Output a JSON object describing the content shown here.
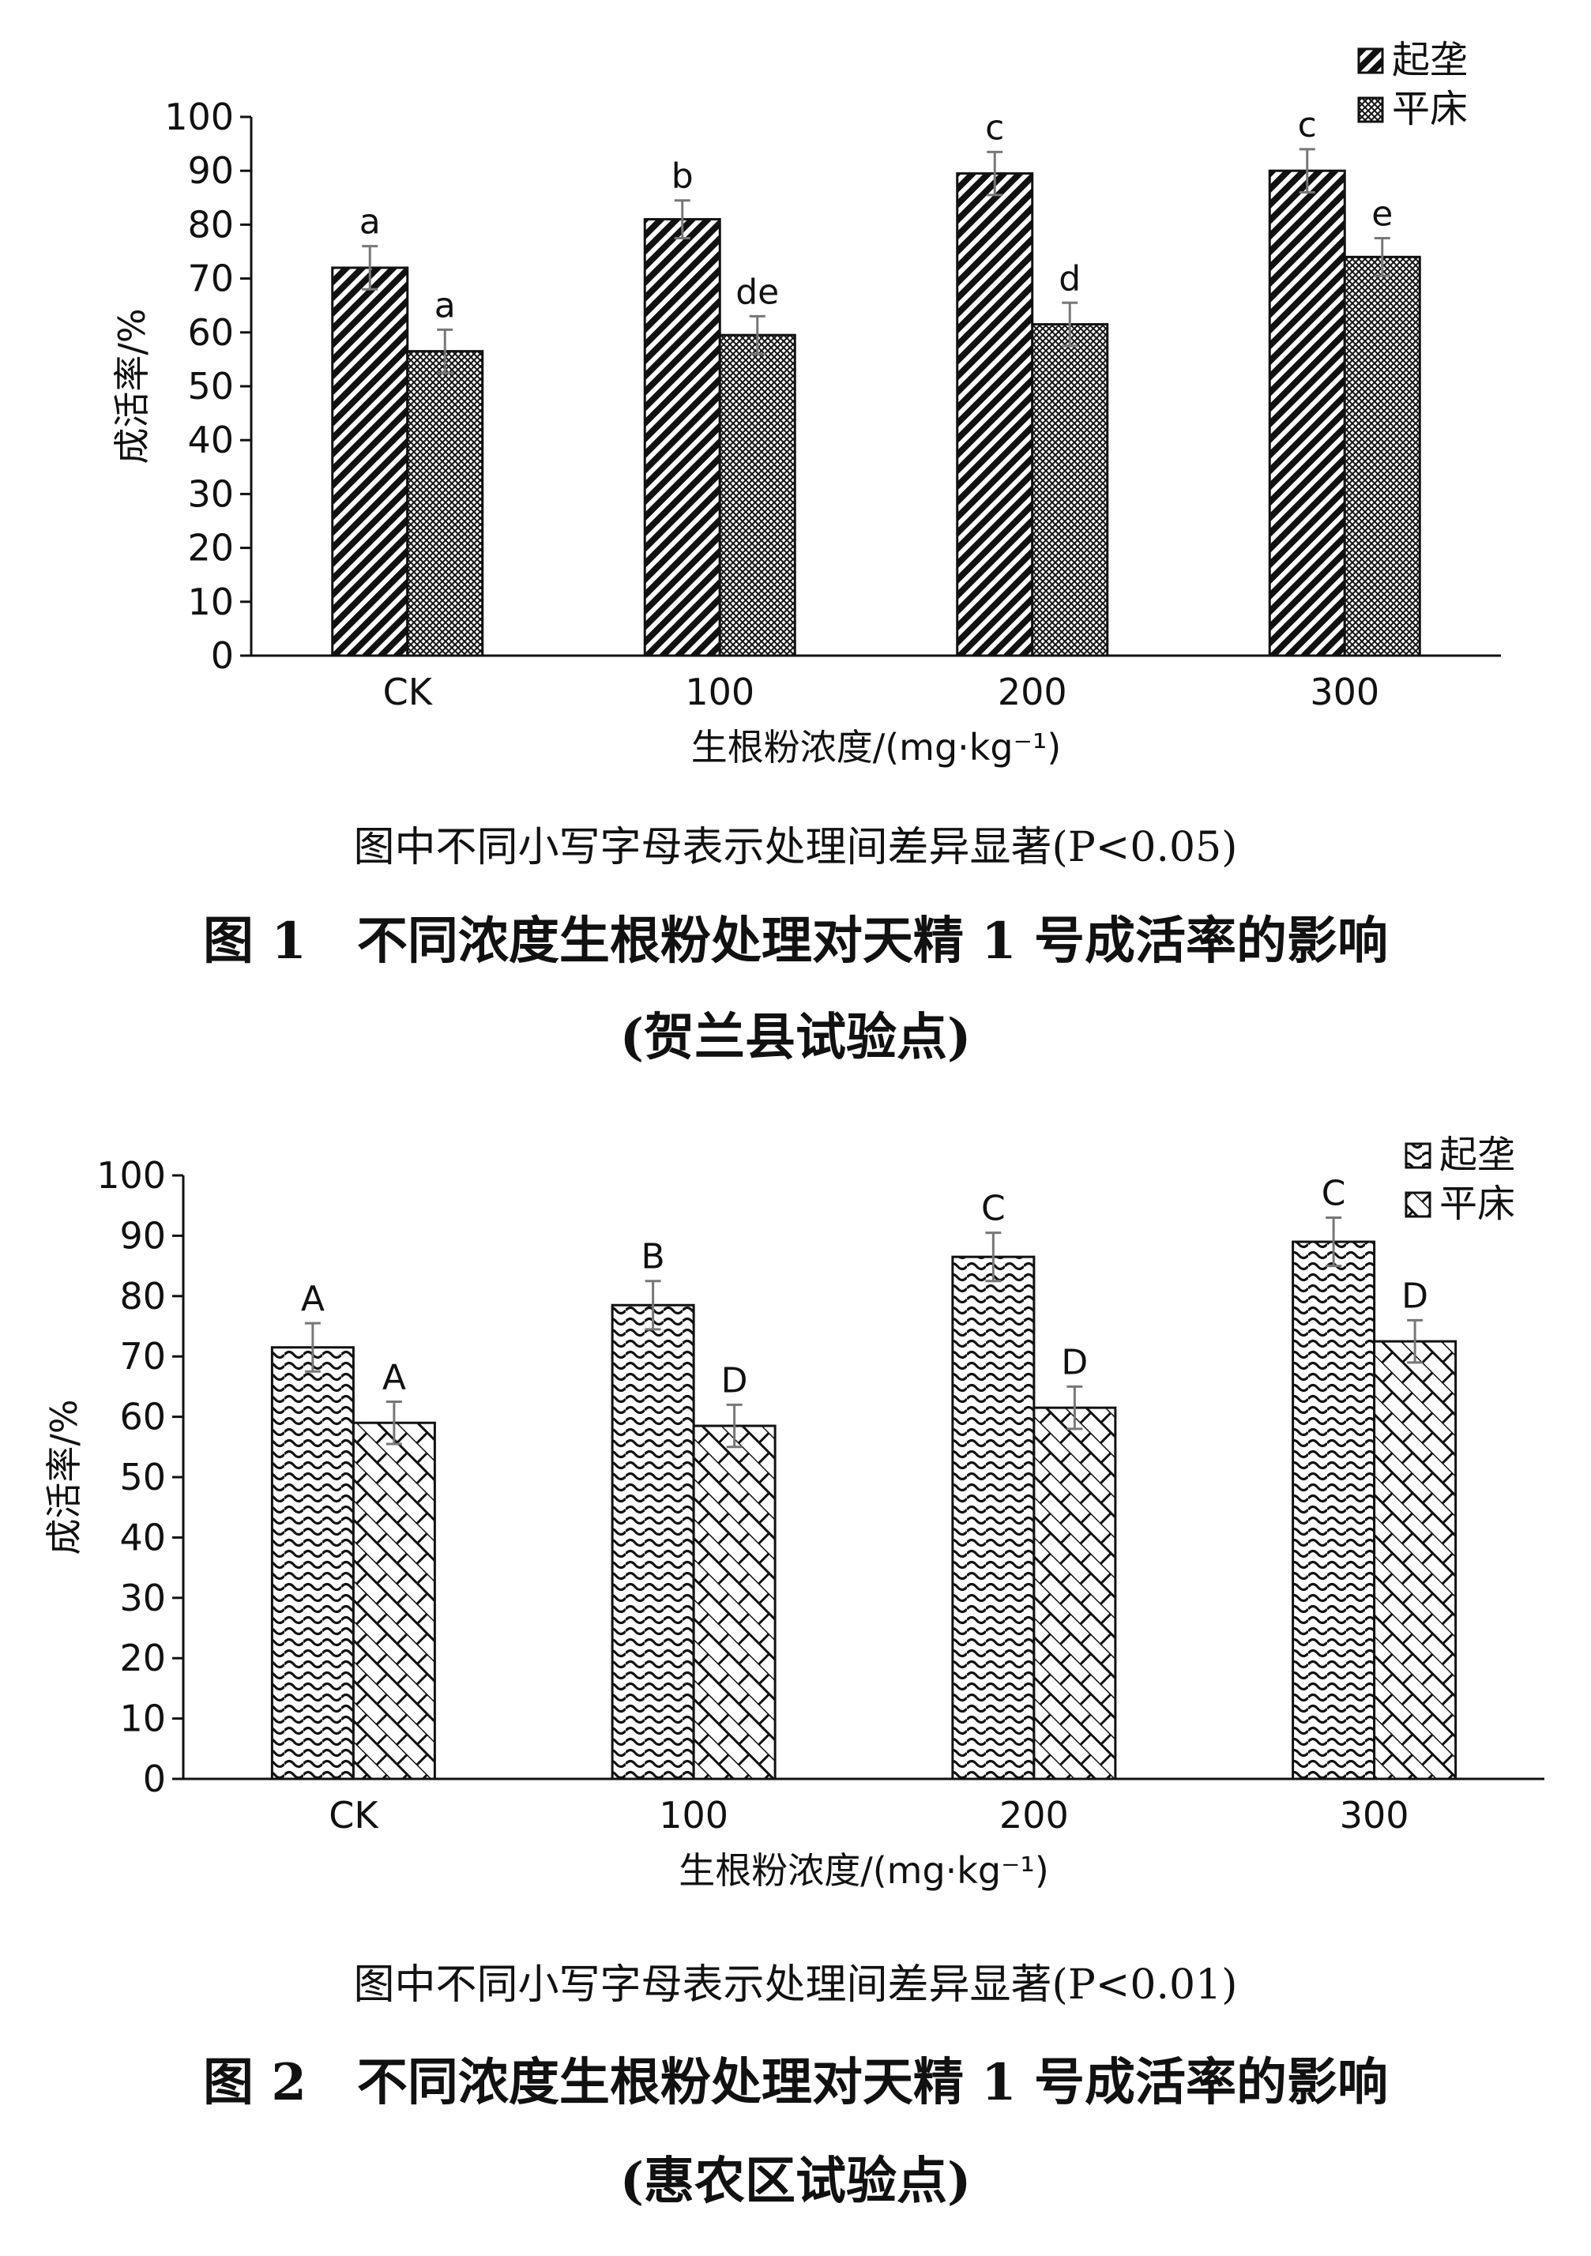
{
  "figures": [
    {
      "note": "图中不同小写字母表示处理间差异显著(P<0.05)",
      "caption_line1": "图 1　不同浓度生根粉处理对天精 1 号成活率的影响",
      "caption_line2": "(贺兰县试验点)",
      "chart_data": {
        "type": "bar",
        "title": "",
        "xlabel": "生根粉浓度/(mg·kg⁻¹)",
        "ylabel": "成活率/%",
        "categories": [
          "CK",
          "100",
          "200",
          "300"
        ],
        "ylim": [
          0,
          100
        ],
        "yticks": [
          0,
          10,
          20,
          30,
          40,
          50,
          60,
          70,
          80,
          90,
          100
        ],
        "legend_position": "top-right",
        "grid": false,
        "series": [
          {
            "name": "起垄",
            "values": [
              72,
              81,
              89.5,
              90
            ],
            "errors": [
              4,
              3.5,
              4,
              4
            ],
            "labels": [
              "a",
              "b",
              "c",
              "c"
            ],
            "pattern": "diagonal"
          },
          {
            "name": "平床",
            "values": [
              56.5,
              59.5,
              61.5,
              74
            ],
            "errors": [
              4,
              3.5,
              4,
              3.5
            ],
            "labels": [
              "a",
              "de",
              "d",
              "e"
            ],
            "pattern": "crosshatch"
          }
        ]
      }
    },
    {
      "note": "图中不同小写字母表示处理间差异显著(P<0.01)",
      "caption_line1": "图 2　不同浓度生根粉处理对天精 1 号成活率的影响",
      "caption_line2": "(惠农区试验点)",
      "chart_data": {
        "type": "bar",
        "title": "",
        "xlabel": "生根粉浓度/(mg·kg⁻¹)",
        "ylabel": "成活率/%",
        "categories": [
          "CK",
          "100",
          "200",
          "300"
        ],
        "ylim": [
          0,
          100
        ],
        "yticks": [
          0,
          10,
          20,
          30,
          40,
          50,
          60,
          70,
          80,
          90,
          100
        ],
        "legend_position": "top-right",
        "grid": false,
        "series": [
          {
            "name": "起垄",
            "values": [
              71.5,
              78.5,
              86.5,
              89
            ],
            "errors": [
              4,
              4,
              4,
              4
            ],
            "labels": [
              "A",
              "B",
              "C",
              "C"
            ],
            "pattern": "wave"
          },
          {
            "name": "平床",
            "values": [
              59,
              58.5,
              61.5,
              72.5
            ],
            "errors": [
              3.5,
              3.5,
              3.5,
              3.5
            ],
            "labels": [
              "A",
              "D",
              "D",
              "D"
            ],
            "pattern": "lattice"
          }
        ]
      }
    }
  ]
}
